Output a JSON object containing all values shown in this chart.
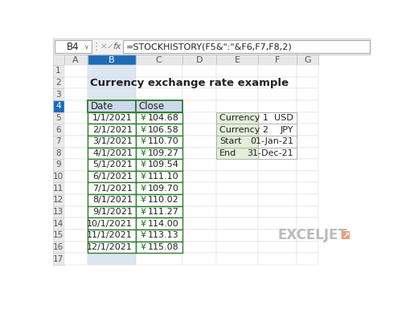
{
  "title": "Currency exchange rate example",
  "formula_bar_cell": "B4",
  "formula_bar_formula": "=STOCKHISTORY(F5&\":\"&F6,F7,F8,2)",
  "col_headers": [
    "A",
    "B",
    "C",
    "D",
    "E",
    "F",
    "G"
  ],
  "main_table_data": [
    [
      "1/1/2021",
      "¥",
      "104.68"
    ],
    [
      "2/1/2021",
      "¥",
      "106.58"
    ],
    [
      "3/1/2021",
      "¥",
      "110.70"
    ],
    [
      "4/1/2021",
      "¥",
      "109.27"
    ],
    [
      "5/1/2021",
      "¥",
      "109.54"
    ],
    [
      "6/1/2021",
      "¥",
      "111.10"
    ],
    [
      "7/1/2021",
      "¥",
      "109.70"
    ],
    [
      "8/1/2021",
      "¥",
      "110.02"
    ],
    [
      "9/1/2021",
      "¥",
      "111.27"
    ],
    [
      "10/1/2021",
      "¥",
      "114.00"
    ],
    [
      "11/1/2021",
      "¥",
      "113.13"
    ],
    [
      "12/1/2021",
      "¥",
      "115.08"
    ]
  ],
  "side_table_data": [
    [
      "Currency 1",
      "USD"
    ],
    [
      "Currency 2",
      "JPY"
    ],
    [
      "Start",
      "01-Jan-21"
    ],
    [
      "End",
      "31-Dec-21"
    ]
  ],
  "bg_color": "#ffffff",
  "toolbar_bg": "#f2f2f2",
  "header_bg": "#e8e8e8",
  "col_b_header_bg": "#1e6bb8",
  "col_b_cell_bg": "#dce6f1",
  "main_table_header_bg": "#cdd9ea",
  "main_table_border": "#2d7d2d",
  "side_table_left_bg": "#e2eed8",
  "side_table_border": "#b0b0b0",
  "row4_num_bg": "#1e6bb8",
  "exceljet_color": "#bbbbbb",
  "exceljet_arrow_color": "#e8a080"
}
